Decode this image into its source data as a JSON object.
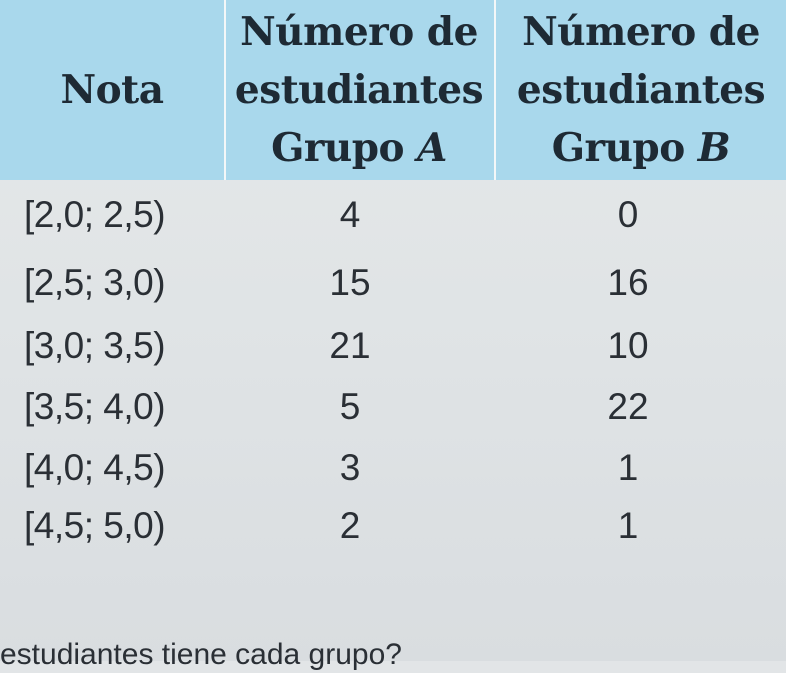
{
  "table": {
    "headers": [
      {
        "lines": [
          "Nota"
        ]
      },
      {
        "lines": [
          "Número de",
          "estudiantes",
          "Grupo "
        ],
        "italic_suffix": "A"
      },
      {
        "lines": [
          "Número de",
          "estudiantes",
          "Grupo "
        ],
        "italic_suffix": "B"
      }
    ],
    "rows": [
      {
        "nota": "[2,0; 2,5)",
        "grupo_a": "4",
        "grupo_b": "0"
      },
      {
        "nota": "[2,5; 3,0)",
        "grupo_a": "15",
        "grupo_b": "16"
      },
      {
        "nota": "[3,0; 3,5)",
        "grupo_a": "21",
        "grupo_b": "10"
      },
      {
        "nota": "[3,5; 4,0)",
        "grupo_a": "5",
        "grupo_b": "22"
      },
      {
        "nota": "[4,0; 4,5)",
        "grupo_a": "3",
        "grupo_b": "1"
      },
      {
        "nota": "[4,5; 5,0)",
        "grupo_a": "2",
        "grupo_b": "1"
      }
    ]
  },
  "footer_text": "estudiantes tiene cada grupo?",
  "colors": {
    "header_bg": "#a9d8ec",
    "body_bg": "#e2e5e7",
    "text": "#2a2f35"
  }
}
